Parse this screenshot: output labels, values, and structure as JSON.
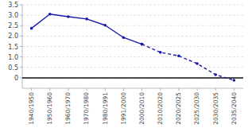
{
  "chart_data": {
    "type": "line",
    "categories": [
      "1940/1950",
      "1950/1960",
      "1960/1970",
      "1970/1980",
      "1980/1991",
      "1991/2000",
      "2000/2010",
      "2010/2020",
      "2020/2025",
      "2025/2030",
      "2030/2035",
      "2035/2040"
    ],
    "series": [
      {
        "color": "#1a1aaa",
        "line_style": "solid",
        "marker": "dot",
        "values": [
          2.37,
          3.05,
          2.93,
          2.82,
          2.52,
          1.93,
          1.61,
          null,
          null,
          null,
          null,
          null
        ]
      },
      {
        "color": "#1a1aaa",
        "line_style": "dashed",
        "marker": "dot",
        "values": [
          null,
          null,
          null,
          null,
          null,
          null,
          1.61,
          1.22,
          1.05,
          0.68,
          0.15,
          -0.12
        ]
      }
    ],
    "ylim": [
      -0.5,
      3.5
    ],
    "yticks": [
      0,
      0.5,
      {
        "value": 1.0,
        "label": "1.0"
      },
      1.5,
      {
        "value": 2.0,
        "label": "2.0"
      },
      2.5,
      {
        "value": 3.0,
        "label": "3.0"
      },
      3.5
    ],
    "grid": true,
    "reference_line": {
      "y": 0,
      "color": "#111111"
    }
  }
}
